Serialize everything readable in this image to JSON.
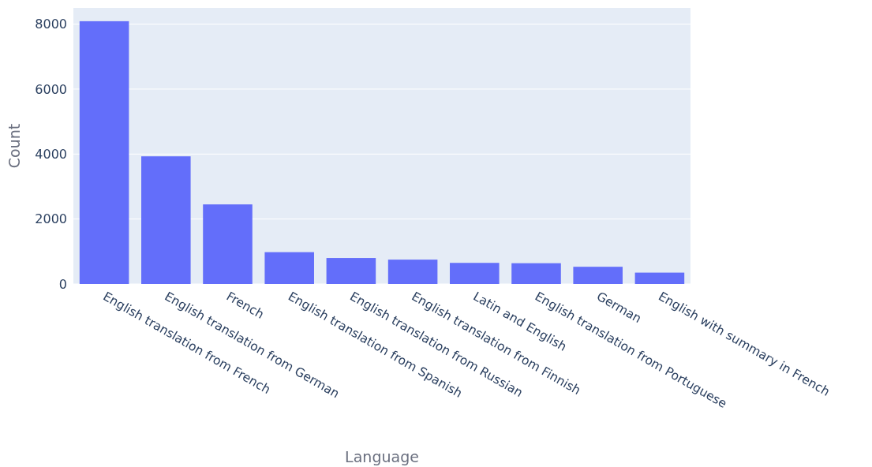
{
  "chart_data": {
    "type": "bar",
    "xlabel": "Language",
    "ylabel": "Count",
    "categories": [
      "English translation from French",
      "English translation from German",
      "French",
      "English translation from Spanish",
      "English translation from Russian",
      "English translation from Finnish",
      "Latin and English",
      "English translation from Portuguese",
      "German",
      "English with summary in French"
    ],
    "values": [
      8090,
      3930,
      2450,
      980,
      800,
      750,
      650,
      640,
      530,
      350
    ],
    "color": "#636efa",
    "ylim": [
      0,
      8500
    ],
    "yticks": [
      0,
      2000,
      4000,
      6000,
      8000
    ],
    "grid": "y"
  }
}
